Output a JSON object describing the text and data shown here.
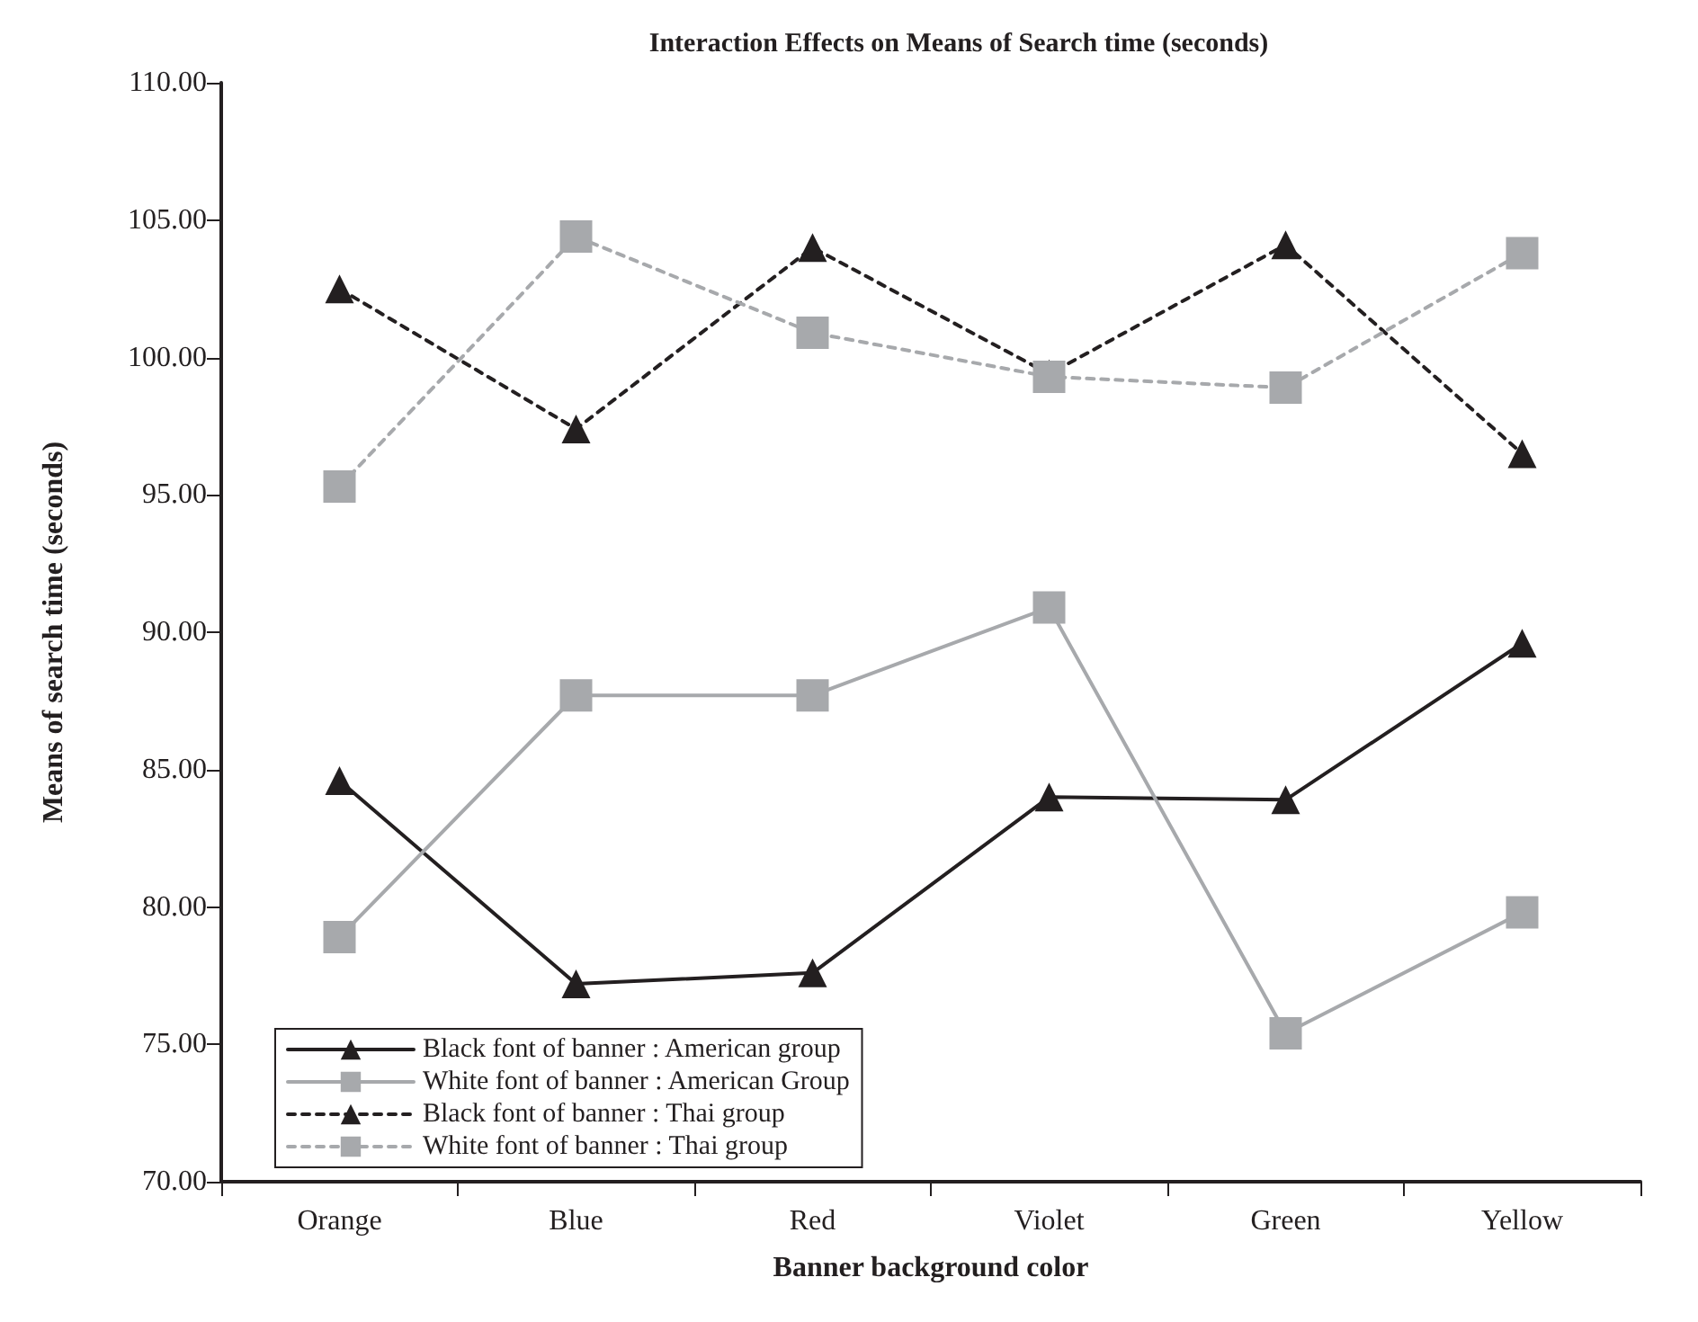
{
  "chart_data": {
    "type": "line",
    "title": "Interaction Effects on Means of Search time (seconds)",
    "xlabel": "Banner background color",
    "ylabel": "Means of search time (seconds)",
    "categories": [
      "Orange",
      "Blue",
      "Red",
      "Violet",
      "Green",
      "Yellow"
    ],
    "series": [
      {
        "name": "Black font of banner : American group",
        "color": "#231f20",
        "marker": "triangle",
        "line_style": "solid",
        "values": [
          84.6,
          77.2,
          77.6,
          84.0,
          83.9,
          89.6
        ]
      },
      {
        "name": "White font of banner : American Group",
        "color": "#a7a9ac",
        "marker": "square",
        "line_style": "solid",
        "values": [
          78.9,
          87.7,
          87.7,
          90.9,
          75.4,
          79.8
        ]
      },
      {
        "name": "Black font of banner : Thai group",
        "color": "#231f20",
        "marker": "triangle",
        "line_style": "dashed",
        "values": [
          102.5,
          97.4,
          104.0,
          99.4,
          104.1,
          96.5
        ]
      },
      {
        "name": "White font of banner : Thai group",
        "color": "#a7a9ac",
        "marker": "square",
        "line_style": "dashed",
        "values": [
          95.3,
          104.4,
          100.9,
          99.3,
          98.9,
          103.8
        ]
      }
    ],
    "ylim": [
      70,
      110
    ],
    "yticks": [
      {
        "value": 70,
        "label": "70.00"
      },
      {
        "value": 75,
        "label": "75.00"
      },
      {
        "value": 80,
        "label": "80.00"
      },
      {
        "value": 85,
        "label": "85.00"
      },
      {
        "value": 90,
        "label": "90.00"
      },
      {
        "value": 95,
        "label": "95.00"
      },
      {
        "value": 100,
        "label": "100.00"
      },
      {
        "value": 105,
        "label": "105.00"
      },
      {
        "value": 110,
        "label": "110.00"
      }
    ],
    "grid": false,
    "legend": "bottom left"
  }
}
